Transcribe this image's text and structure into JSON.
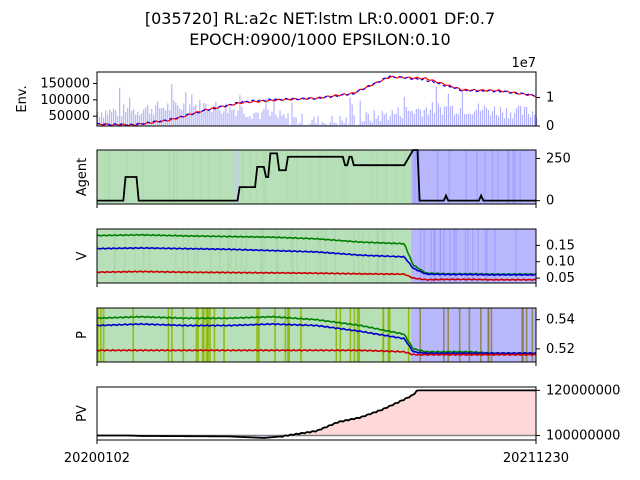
{
  "title_line1": "[035720] RL:a2c NET:lstm LR:0.0001 DF:0.7",
  "title_line2": "EPOCH:0900/1000 EPSILON:0.10",
  "chart_data": [
    {
      "type": "line",
      "panel": "env",
      "ylabel": "Env.",
      "ylim": [
        20000,
        185000
      ],
      "yticks": [
        "50000",
        "100000",
        "150000"
      ],
      "ytick_values": [
        50000,
        100000,
        150000
      ],
      "y2_offset_label": "1e7",
      "y2ticks": [
        "0",
        "1"
      ],
      "y2_tick_values": [
        0,
        1
      ],
      "series": [
        {
          "name": "",
          "color": "#ff0000",
          "x": [
            "20200102",
            "20200301",
            "20200501",
            "20200701",
            "20200901",
            "20201101",
            "20210104",
            "20210301",
            "20210501",
            "20210701",
            "20210901",
            "20211101",
            "20211230"
          ],
          "values": [
            25000,
            23000,
            38000,
            70000,
            92000,
            100000,
            105000,
            120000,
            170000,
            165000,
            130000,
            128000,
            112000
          ]
        },
        {
          "name": "",
          "color": "#0000ff",
          "style": "dashed",
          "x": [
            "20200102",
            "20200301",
            "20200501",
            "20200701",
            "20200901",
            "20201101",
            "20210104",
            "20210301",
            "20210501",
            "20210701",
            "20210901",
            "20211101",
            "20211230"
          ],
          "values": [
            26000,
            24000,
            40000,
            68000,
            95000,
            102000,
            104000,
            118000,
            172000,
            160000,
            128000,
            126000,
            114000
          ]
        }
      ],
      "volume_color": "#b3b3ff",
      "volume_max_1e7": 1.6
    },
    {
      "type": "line",
      "panel": "agent",
      "ylabel": "Agent",
      "ylim": [
        -20,
        300
      ],
      "y2ticks": [
        "0",
        "250"
      ],
      "y2_tick_values": [
        0,
        250
      ],
      "series": [
        {
          "name": "",
          "color": "#000000",
          "x": [
            0,
            0.06,
            0.065,
            0.09,
            0.095,
            0.32,
            0.325,
            0.36,
            0.365,
            0.38,
            0.385,
            0.39,
            0.395,
            0.41,
            0.415,
            0.43,
            0.435,
            0.56,
            0.565,
            0.57,
            0.575,
            0.58,
            0.585,
            0.7,
            0.72,
            0.73,
            0.735,
            0.79,
            0.795,
            0.8,
            0.87,
            0.875,
            0.88,
            1.0
          ],
          "values": [
            0,
            0,
            140,
            140,
            0,
            0,
            80,
            80,
            200,
            200,
            140,
            140,
            280,
            280,
            180,
            180,
            260,
            260,
            210,
            210,
            260,
            260,
            210,
            210,
            300,
            300,
            0,
            0,
            30,
            0,
            0,
            30,
            0,
            0
          ]
        }
      ],
      "background_regions": [
        {
          "from": 0.0,
          "to": 0.715,
          "color": "#b8e0b8"
        },
        {
          "from": 0.715,
          "to": 1.0,
          "color": "#b8b8ff"
        }
      ]
    },
    {
      "type": "line",
      "panel": "value",
      "ylabel": "V",
      "ylim": [
        0.035,
        0.2
      ],
      "y2ticks": [
        "0.05",
        "0.10",
        "0.15"
      ],
      "y2_tick_values": [
        0.05,
        0.1,
        0.15
      ],
      "x": [
        0,
        0.1,
        0.2,
        0.3,
        0.4,
        0.5,
        0.6,
        0.7,
        0.72,
        0.75,
        0.8,
        0.85,
        0.9,
        1.0
      ],
      "series": [
        {
          "name": "",
          "color": "#008000",
          "values": [
            0.18,
            0.182,
            0.179,
            0.177,
            0.175,
            0.17,
            0.16,
            0.155,
            0.09,
            0.065,
            0.063,
            0.063,
            0.062,
            0.062
          ]
        },
        {
          "name": "",
          "color": "#0000cc",
          "values": [
            0.14,
            0.142,
            0.14,
            0.138,
            0.134,
            0.13,
            0.12,
            0.115,
            0.08,
            0.062,
            0.061,
            0.061,
            0.06,
            0.06
          ]
        },
        {
          "name": "",
          "color": "#cc0000",
          "values": [
            0.068,
            0.07,
            0.068,
            0.067,
            0.066,
            0.065,
            0.063,
            0.062,
            0.05,
            0.045,
            0.046,
            0.046,
            0.045,
            0.045
          ]
        }
      ],
      "background_regions": [
        {
          "from": 0.0,
          "to": 0.715,
          "color": "#b8e0b8"
        },
        {
          "from": 0.715,
          "to": 1.0,
          "color": "#b8b8ff"
        }
      ]
    },
    {
      "type": "line",
      "panel": "policy",
      "ylabel": "P",
      "ylim": [
        0.511,
        0.548
      ],
      "y2ticks": [
        "0.52",
        "0.54"
      ],
      "y2_tick_values": [
        0.52,
        0.54
      ],
      "x": [
        0,
        0.1,
        0.2,
        0.3,
        0.4,
        0.5,
        0.6,
        0.7,
        0.72,
        0.75,
        0.8,
        0.85,
        0.9,
        1.0
      ],
      "series": [
        {
          "name": "",
          "color": "#008000",
          "values": [
            0.541,
            0.542,
            0.541,
            0.541,
            0.542,
            0.54,
            0.536,
            0.53,
            0.52,
            0.518,
            0.518,
            0.518,
            0.517,
            0.517
          ]
        },
        {
          "name": "",
          "color": "#0000cc",
          "values": [
            0.536,
            0.537,
            0.536,
            0.536,
            0.537,
            0.536,
            0.532,
            0.527,
            0.518,
            0.517,
            0.517,
            0.517,
            0.517,
            0.517
          ]
        },
        {
          "name": "",
          "color": "#cc0000",
          "values": [
            0.519,
            0.519,
            0.519,
            0.519,
            0.519,
            0.519,
            0.519,
            0.518,
            0.516,
            0.516,
            0.516,
            0.516,
            0.516,
            0.516
          ]
        }
      ],
      "background_regions": [
        {
          "from": 0.0,
          "to": 0.715,
          "color": "#b8e0b8"
        },
        {
          "from": 0.715,
          "to": 1.0,
          "color": "#b8b8ff"
        }
      ]
    },
    {
      "type": "area",
      "panel": "portfolio",
      "ylabel": "PV",
      "ylim": [
        98000000,
        121500000
      ],
      "baseline": 100000000,
      "y2ticks": [
        "100000000",
        "120000000"
      ],
      "y2_tick_values": [
        100000000,
        120000000
      ],
      "xticks": [
        "20200102",
        "20211230"
      ],
      "x": [
        0,
        0.07,
        0.1,
        0.3,
        0.38,
        0.42,
        0.5,
        0.55,
        0.6,
        0.65,
        0.7,
        0.72,
        0.73,
        0.76,
        1.0
      ],
      "series": [
        {
          "name": "",
          "color": "#000000",
          "values": [
            100000000,
            100000000,
            99800000,
            99600000,
            98900000,
            99600000,
            102000000,
            106000000,
            108000000,
            111500000,
            116000000,
            118000000,
            120000000,
            120000000,
            120000000
          ]
        }
      ],
      "profit_fill": "#ffd9d9",
      "loss_fill": "#d9d9ff",
      "baseline_color": "#808080"
    }
  ]
}
